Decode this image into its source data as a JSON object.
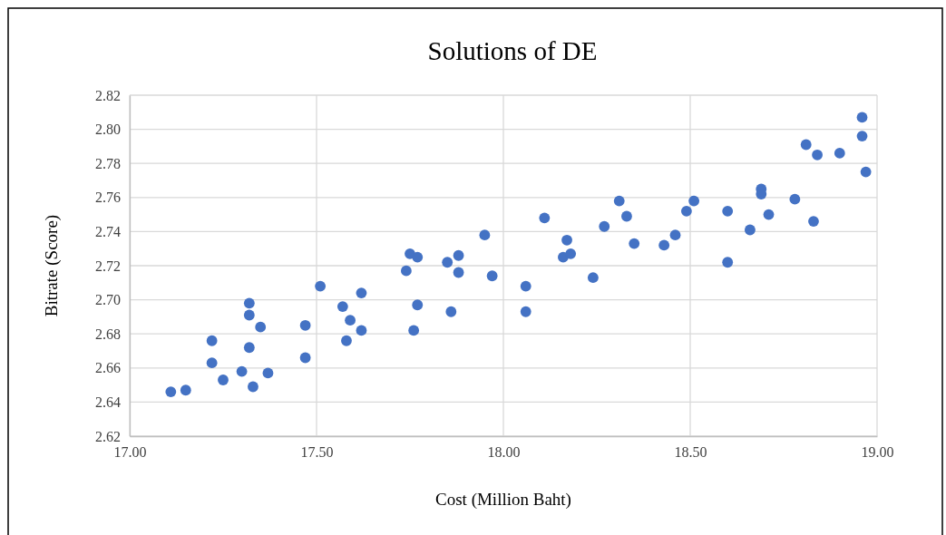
{
  "chart_data": {
    "type": "scatter",
    "title": "Solutions of DE",
    "xlabel": "Cost (Million Baht)",
    "ylabel": "Bitrate (Score)",
    "grid": true,
    "marker": "circle",
    "xlim": [
      17,
      19
    ],
    "xticks": [
      {
        "value": 17,
        "label": "17.00"
      },
      {
        "value": 17.5,
        "label": "17.50"
      },
      {
        "value": 18,
        "label": "18.00"
      },
      {
        "value": 18.5,
        "label": "18.50"
      },
      {
        "value": 19,
        "label": "19.00"
      }
    ],
    "ylim": [
      2.62,
      2.82
    ],
    "yticks": [
      {
        "value": 2.62,
        "label": "2.62"
      },
      {
        "value": 2.64,
        "label": "2.64"
      },
      {
        "value": 2.66,
        "label": "2.66"
      },
      {
        "value": 2.68,
        "label": "2.68"
      },
      {
        "value": 2.7,
        "label": "2.70"
      },
      {
        "value": 2.72,
        "label": "2.72"
      },
      {
        "value": 2.74,
        "label": "2.74"
      },
      {
        "value": 2.76,
        "label": "2.76"
      },
      {
        "value": 2.78,
        "label": "2.78"
      },
      {
        "value": 2.8,
        "label": "2.80"
      },
      {
        "value": 2.82,
        "label": "2.82"
      }
    ],
    "series": [
      {
        "color": "#4472c4",
        "x": [
          17.11,
          17.15,
          17.22,
          17.22,
          17.25,
          17.3,
          17.32,
          17.32,
          17.32,
          17.33,
          17.35,
          17.37,
          17.47,
          17.47,
          17.51,
          17.57,
          17.58,
          17.59,
          17.62,
          17.62,
          17.74,
          17.75,
          17.77,
          17.76,
          17.77,
          17.85,
          17.86,
          17.88,
          17.88,
          17.95,
          17.97,
          18.06,
          18.06,
          18.11,
          18.16,
          18.17,
          18.18,
          18.24,
          18.27,
          18.31,
          18.33,
          18.35,
          18.43,
          18.46,
          18.49,
          18.51,
          18.6,
          18.6,
          18.66,
          18.69,
          18.69,
          18.71,
          18.78,
          18.81,
          18.83,
          18.84,
          18.9,
          18.96,
          18.96,
          18.97
        ],
        "values": [
          2.646,
          2.647,
          2.676,
          2.663,
          2.653,
          2.658,
          2.698,
          2.691,
          2.672,
          2.649,
          2.684,
          2.657,
          2.685,
          2.666,
          2.708,
          2.696,
          2.676,
          2.688,
          2.704,
          2.682,
          2.717,
          2.727,
          2.725,
          2.682,
          2.697,
          2.722,
          2.693,
          2.726,
          2.716,
          2.738,
          2.714,
          2.708,
          2.693,
          2.748,
          2.725,
          2.735,
          2.727,
          2.713,
          2.743,
          2.758,
          2.749,
          2.733,
          2.732,
          2.738,
          2.752,
          2.758,
          2.752,
          2.722,
          2.741,
          2.765,
          2.762,
          2.75,
          2.759,
          2.791,
          2.746,
          2.785,
          2.786,
          2.807,
          2.796,
          2.775
        ]
      }
    ]
  }
}
